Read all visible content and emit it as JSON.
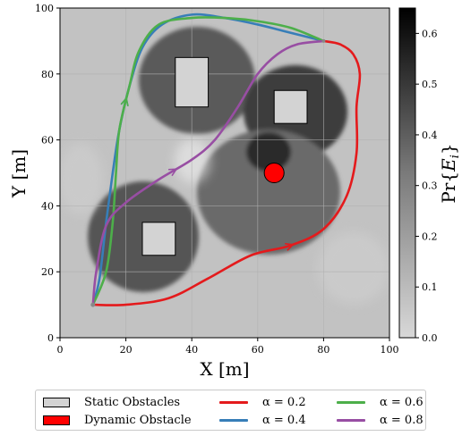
{
  "chart_data": {
    "type": "line",
    "xlabel": "X [m]",
    "ylabel": "Y [m]",
    "xlim": [
      0,
      100
    ],
    "ylim": [
      0,
      100
    ],
    "x_ticks": [
      "0",
      "20",
      "40",
      "60",
      "80",
      "100"
    ],
    "y_ticks": [
      "0",
      "20",
      "40",
      "60",
      "80",
      "100"
    ],
    "grid": true,
    "colorbar": {
      "label": "Pr{E_i}",
      "range": [
        0.0,
        0.65
      ],
      "ticks": [
        "0.0",
        "0.1",
        "0.2",
        "0.3",
        "0.4",
        "0.5",
        "0.6"
      ]
    },
    "start": [
      10,
      10
    ],
    "goal": [
      80,
      90
    ],
    "static_obstacles": [
      {
        "x": [
          35,
          45
        ],
        "y": [
          70,
          85
        ]
      },
      {
        "x": [
          65,
          75
        ],
        "y": [
          65,
          75
        ]
      },
      {
        "x": [
          25,
          35
        ],
        "y": [
          25,
          35
        ]
      }
    ],
    "dynamic_obstacle": {
      "center": [
        65,
        50
      ],
      "radius": 3
    },
    "series": [
      {
        "name": "α = 0.2",
        "color": "#e41a1c",
        "points": [
          [
            10,
            10
          ],
          [
            20,
            10
          ],
          [
            33,
            12
          ],
          [
            45,
            18
          ],
          [
            58,
            25
          ],
          [
            70,
            28
          ],
          [
            80,
            33
          ],
          [
            87,
            43
          ],
          [
            90,
            56
          ],
          [
            90,
            70
          ],
          [
            91,
            80
          ],
          [
            89,
            86
          ],
          [
            85,
            89
          ],
          [
            80,
            90
          ]
        ]
      },
      {
        "name": "α = 0.4",
        "color": "#377eb8",
        "points": [
          [
            10,
            10
          ],
          [
            12,
            18
          ],
          [
            14,
            35
          ],
          [
            16,
            50
          ],
          [
            18,
            63
          ],
          [
            21,
            76
          ],
          [
            25,
            88
          ],
          [
            31,
            95
          ],
          [
            40,
            98
          ],
          [
            50,
            97
          ],
          [
            60,
            95
          ],
          [
            68,
            93
          ],
          [
            80,
            90
          ]
        ]
      },
      {
        "name": "α = 0.6",
        "color": "#4daf4a",
        "points": [
          [
            10,
            10
          ],
          [
            14,
            20
          ],
          [
            16,
            35
          ],
          [
            17,
            50
          ],
          [
            18,
            63
          ],
          [
            21,
            76
          ],
          [
            24,
            87
          ],
          [
            30,
            95
          ],
          [
            40,
            97
          ],
          [
            50,
            97
          ],
          [
            60,
            96
          ],
          [
            70,
            94
          ],
          [
            80,
            90
          ]
        ]
      },
      {
        "name": "α = 0.8",
        "color": "#984ea3",
        "points": [
          [
            10,
            10
          ],
          [
            11,
            20
          ],
          [
            14,
            34
          ],
          [
            20,
            41
          ],
          [
            30,
            48
          ],
          [
            40,
            54
          ],
          [
            47,
            60
          ],
          [
            54,
            70
          ],
          [
            60,
            80
          ],
          [
            66,
            86
          ],
          [
            72,
            89
          ],
          [
            80,
            90
          ]
        ]
      }
    ],
    "legend": {
      "static_label": "Static Obstacles",
      "dynamic_label": "Dynamic Obstacle",
      "placement": "bottom"
    }
  }
}
